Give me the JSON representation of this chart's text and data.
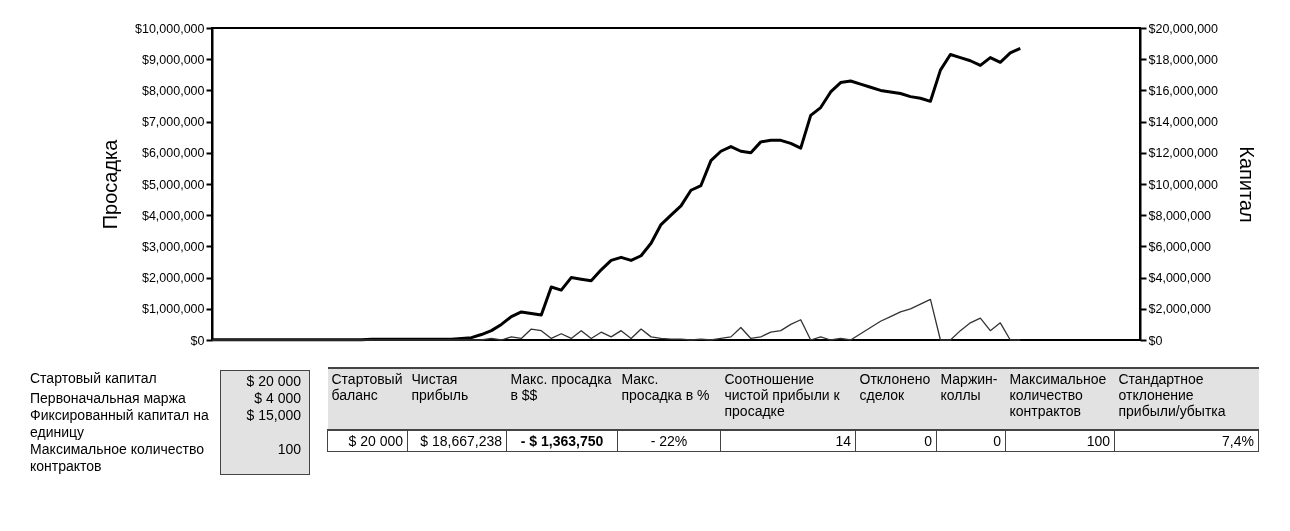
{
  "chart_data": {
    "type": "line",
    "ylabel": "Просадка",
    "y2label": "Капитал",
    "categories": [
      null,
      null,
      null,
      null,
      null,
      null,
      null,
      null,
      null,
      null,
      null,
      null,
      null,
      null,
      null,
      null,
      null,
      null,
      null,
      null,
      null,
      null,
      null,
      null,
      null,
      null,
      null,
      null,
      null,
      null,
      null,
      null,
      null,
      null,
      null,
      null,
      null,
      null,
      null,
      null,
      null,
      null,
      null,
      null,
      null,
      null,
      null,
      null,
      null,
      null,
      null,
      null,
      null,
      null,
      null,
      null,
      null,
      null,
      null,
      null,
      null,
      null,
      null,
      null,
      null,
      null,
      null,
      null,
      null,
      null,
      null,
      null,
      null,
      null,
      null,
      null,
      null,
      null,
      null,
      null,
      null,
      null,
      null,
      null,
      null,
      null,
      null,
      null,
      null,
      null,
      null,
      null,
      null,
      null
    ],
    "series": [
      {
        "color": "#000000",
        "axis": "y2",
        "values": [
          20000,
          20000,
          20000,
          20000,
          20000,
          20000,
          20000,
          20000,
          20000,
          20000,
          20000,
          20000,
          20000,
          20000,
          20000,
          20000,
          50000,
          50000,
          50000,
          50000,
          50000,
          50000,
          50000,
          50000,
          50000,
          100000,
          150000,
          350000,
          600000,
          1000000,
          1500000,
          1800000,
          1700000,
          1600000,
          3400000,
          3200000,
          4000000,
          3900000,
          3800000,
          4500000,
          5100000,
          5300000,
          5100000,
          5400000,
          6200000,
          7400000,
          8000000,
          8600000,
          9600000,
          9900000,
          11500000,
          12100000,
          12400000,
          12100000,
          12000000,
          12700000,
          12800000,
          12800000,
          12600000,
          12300000,
          14400000,
          14900000,
          15900000,
          16500000,
          16600000,
          16400000,
          16200000,
          16000000,
          15900000,
          15800000,
          15600000,
          15500000,
          15300000,
          17300000,
          18300000,
          18100000,
          17900000,
          17600000,
          18100000,
          17800000,
          18400000,
          18690000,
          null,
          null,
          null,
          null,
          null,
          null,
          null,
          null,
          null,
          null,
          null,
          null
        ]
      },
      {
        "color": "#333333",
        "values": [
          0,
          0,
          0,
          0,
          0,
          0,
          0,
          0,
          0,
          0,
          0,
          0,
          0,
          0,
          0,
          0,
          0,
          0,
          0,
          0,
          0,
          0,
          0,
          0,
          0,
          0,
          0,
          0,
          50000,
          0,
          100000,
          50000,
          350000,
          300000,
          50000,
          200000,
          50000,
          300000,
          50000,
          250000,
          100000,
          300000,
          50000,
          350000,
          100000,
          50000,
          30000,
          30000,
          0,
          30000,
          0,
          50000,
          100000,
          400000,
          50000,
          100000,
          250000,
          300000,
          500000,
          650000,
          0,
          100000,
          0,
          50000,
          0,
          200000,
          400000,
          600000,
          750000,
          900000,
          1000000,
          1150000,
          1300000,
          0,
          0,
          300000,
          550000,
          700000,
          300000,
          550000,
          0,
          0,
          null,
          null,
          null,
          null,
          null,
          null,
          null,
          null,
          null,
          null,
          null,
          null
        ]
      }
    ],
    "ylim": [
      0,
      10000000
    ],
    "yticks": [
      {
        "value": 0,
        "label": "$0"
      },
      {
        "value": 1000000,
        "label": "$1,000,000"
      },
      {
        "value": 2000000,
        "label": "$2,000,000"
      },
      {
        "value": 3000000,
        "label": "$3,000,000"
      },
      {
        "value": 4000000,
        "label": "$4,000,000"
      },
      {
        "value": 5000000,
        "label": "$5,000,000"
      },
      {
        "value": 6000000,
        "label": "$6,000,000"
      },
      {
        "value": 7000000,
        "label": "$7,000,000"
      },
      {
        "value": 8000000,
        "label": "$8,000,000"
      },
      {
        "value": 9000000,
        "label": "$9,000,000"
      },
      {
        "value": 10000000,
        "label": "$10,000,000"
      }
    ],
    "y2lim": [
      0,
      20000000
    ],
    "y2ticks": [
      {
        "value": 0,
        "label": "$0"
      },
      {
        "value": 2000000,
        "label": "$2,000,000"
      },
      {
        "value": 4000000,
        "label": "$4,000,000"
      },
      {
        "value": 6000000,
        "label": "$6,000,000"
      },
      {
        "value": 8000000,
        "label": "$8,000,000"
      },
      {
        "value": 10000000,
        "label": "$10,000,000"
      },
      {
        "value": 12000000,
        "label": "$12,000,000"
      },
      {
        "value": 14000000,
        "label": "$14,000,000"
      },
      {
        "value": 16000000,
        "label": "$16,000,000"
      },
      {
        "value": 18000000,
        "label": "$18,000,000"
      },
      {
        "value": 20000000,
        "label": "$20,000,000"
      }
    ],
    "annotations": [
      "Стартовый капитал",
      "$ 20 000",
      "Первоначальная маржа",
      "$ 4 000",
      "Фиксированный капитал на единицу",
      "$ 15,000",
      "Максимальное количество контрактов",
      "100",
      "Стартовый баланс",
      "Чистая прибыль",
      "Макс. просадка в $$",
      "Макс. просадка в %",
      "Соотношение чистой прибыли к просадке",
      "Отклонено сделок",
      "Маржин-коллы",
      "Максимальное количество контрактов",
      "Стандартное отклонение прибыли/убытка",
      "$ 20 000",
      "$ 18,667,238",
      "- $ 1,363,750",
      "- 22%",
      "14",
      "0",
      "0",
      "100",
      "7,4%"
    ]
  }
}
